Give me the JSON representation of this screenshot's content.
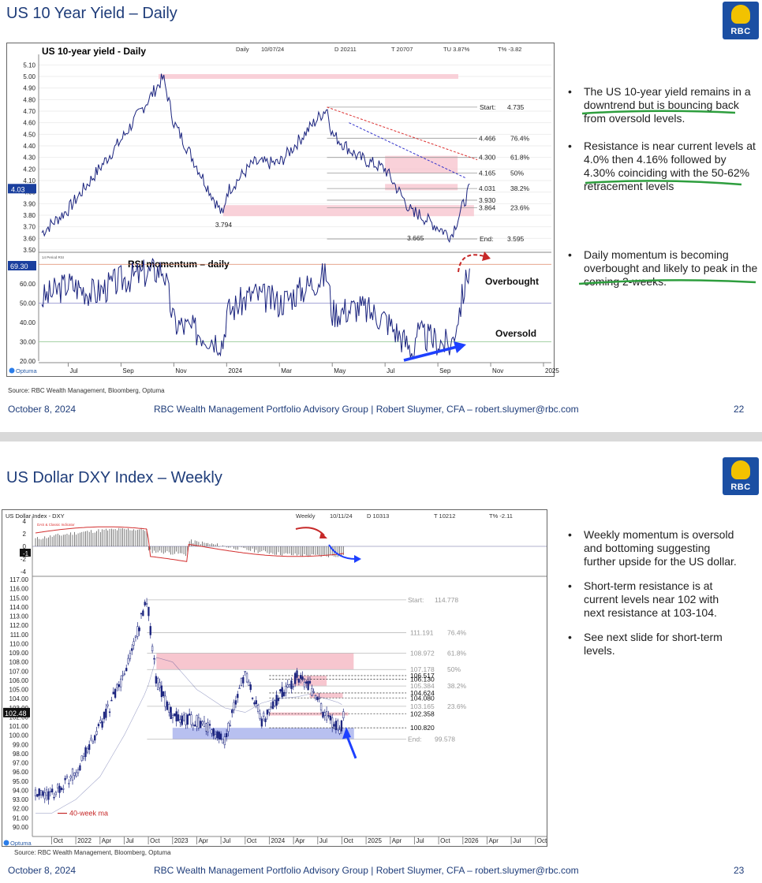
{
  "slide1": {
    "title": "US 10 Year Yield – Daily",
    "logo_text": "RBC",
    "chart_header": {
      "title": "US 10-year yield - Daily",
      "items": [
        "Daily",
        "10/07/24",
        "D 20211",
        "T 20707",
        "TU 3.87%",
        "T% -3.82"
      ]
    },
    "panel_label": "RSI momentum – daily",
    "rsi_small_label": "14 Period RSI",
    "annotations": {
      "overbought": "Overbought",
      "oversold": "Oversold",
      "low1": "3.794",
      "low2": "3.665",
      "price_tag": "4.03",
      "rsi_tag": "69.30"
    },
    "fib_levels": [
      {
        "label": "Start:",
        "value": "4.735",
        "pct": ""
      },
      {
        "label": "",
        "value": "4.466",
        "pct": "76.4%"
      },
      {
        "label": "",
        "value": "4.300",
        "pct": "61.8%"
      },
      {
        "label": "",
        "value": "4.165",
        "pct": "50%"
      },
      {
        "label": "",
        "value": "4.031",
        "pct": "38.2%"
      },
      {
        "label": "",
        "value": "3.930",
        "pct": ""
      },
      {
        "label": "",
        "value": "3.864",
        "pct": "23.6%"
      },
      {
        "label": "End:",
        "value": "3.595",
        "pct": ""
      }
    ],
    "logo_footer": "Optuma",
    "bullets": [
      "The US 10-year yield remains in a downtrend but is bouncing back from oversold levels.",
      "Resistance is near current levels at 4.0% then 4.16% followed by 4.30% coinciding with the 50-62% retracement levels",
      "Daily momentum is becoming overbought and likely to peak in the coming 2-weeks."
    ],
    "source": "Source: RBC Wealth Management, Bloomberg, Optuma",
    "footer": {
      "date": "October 8, 2024",
      "center": "RBC Wealth Management Portfolio Advisory Group | Robert Sluymer, CFA – robert.sluymer@rbc.com",
      "page": "22"
    }
  },
  "slide2": {
    "title": "US Dollar DXY Index – Weekly",
    "logo_text": "RBC",
    "chart_header": {
      "title": "US Dollar Index - DXY",
      "items": [
        "Weekly",
        "10/11/24",
        "D 10313",
        "T 10212",
        "T% -2.11"
      ]
    },
    "macd_label": "DAS & Classic Indicator",
    "ma_label": "40-week ma",
    "price_tag": "102.48",
    "macd_tag": "-1",
    "fib_levels": [
      {
        "label": "Start:",
        "value": "114.778",
        "pct": ""
      },
      {
        "label": "",
        "value": "111.191",
        "pct": "76.4%"
      },
      {
        "label": "",
        "value": "108.972",
        "pct": "61.8%"
      },
      {
        "label": "",
        "value": "107.178",
        "pct": "50%"
      },
      {
        "label": "",
        "value": "106.517",
        "pct": ""
      },
      {
        "label": "",
        "value": "106.130",
        "pct": ""
      },
      {
        "label": "",
        "value": "105.384",
        "pct": "38.2%"
      },
      {
        "label": "",
        "value": "104.624",
        "pct": ""
      },
      {
        "label": "",
        "value": "104.080",
        "pct": ""
      },
      {
        "label": "",
        "value": "103.165",
        "pct": "23.6%"
      },
      {
        "label": "",
        "value": "102.358",
        "pct": ""
      },
      {
        "label": "",
        "value": "100.820",
        "pct": ""
      },
      {
        "label": "End:",
        "value": "99.578",
        "pct": ""
      }
    ],
    "logo_footer": "Optuma",
    "bullets": [
      "Weekly momentum is oversold and bottoming suggesting further upside for the US dollar.",
      "Short-term resistance is at current levels near 102 with next resistance at 103-104.",
      "See next slide for short-term levels."
    ],
    "source": "Source: RBC Wealth Management, Bloomberg, Optuma",
    "footer": {
      "date": "October 8, 2024",
      "center": "RBC Wealth Management Portfolio Advisory Group | Robert Sluymer, CFA – robert.sluymer@rbc.com",
      "page": "23"
    }
  },
  "chart_data": [
    {
      "type": "line",
      "title": "US 10-year yield - Daily",
      "x_ticks": [
        "Jul",
        "Sep",
        "Nov",
        "2024",
        "Mar",
        "May",
        "Jul",
        "Sep",
        "Nov",
        "2025"
      ],
      "ylim": [
        3.5,
        5.15
      ],
      "y_ticks": [
        "5.10",
        "5.00",
        "4.90",
        "4.80",
        "4.70",
        "4.60",
        "4.50",
        "4.40",
        "4.30",
        "4.20",
        "4.10",
        "4.00",
        "3.90",
        "3.80",
        "3.70",
        "3.60",
        "3.50"
      ],
      "series": [
        {
          "x": [
            "2023-06",
            "2023-07",
            "2023-08",
            "2023-09",
            "2023-10-19",
            "2023-11",
            "2023-12-27",
            "2024-01",
            "2024-02",
            "2024-03",
            "2024-04-25",
            "2024-05",
            "2024-06",
            "2024-07",
            "2024-08-05",
            "2024-08",
            "2024-09-16",
            "2024-10-07"
          ],
          "values": [
            3.65,
            3.85,
            4.15,
            4.45,
            4.99,
            4.6,
            3.79,
            4.0,
            4.25,
            4.25,
            4.73,
            4.5,
            4.3,
            4.2,
            3.78,
            3.85,
            3.62,
            4.03
          ]
        }
      ],
      "panel": {
        "name": "RSI momentum – daily",
        "ylim": [
          20,
          75
        ],
        "y_ticks": [
          "60.00",
          "50.00",
          "40.00",
          "30.00",
          "20.00"
        ],
        "levels": [
          70,
          50,
          30
        ],
        "series": [
          {
            "values": [
              52,
              60,
              55,
              62,
              68,
              40,
              30,
              45,
              55,
              50,
              65,
              45,
              48,
              42,
              24,
              35,
              28,
              69.3
            ]
          }
        ]
      }
    },
    {
      "type": "bar",
      "title": "US Dollar Index - DXY",
      "x_ticks": [
        "Oct",
        "2022",
        "Apr",
        "Jul",
        "Oct",
        "2023",
        "Apr",
        "Jul",
        "Oct",
        "2024",
        "Apr",
        "Jul",
        "Oct",
        "2025",
        "Apr",
        "Jul",
        "Oct",
        "2026",
        "Apr",
        "Jul",
        "Oct"
      ],
      "ylim": [
        90,
        117
      ],
      "y_ticks": [
        "117.00",
        "116.00",
        "115.00",
        "114.00",
        "113.00",
        "112.00",
        "111.00",
        "110.00",
        "109.00",
        "108.00",
        "107.00",
        "106.00",
        "105.00",
        "104.00",
        "103.00",
        "102.00",
        "101.00",
        "100.00",
        "99.00",
        "98.00",
        "97.00",
        "96.00",
        "95.00",
        "94.00",
        "93.00",
        "92.00",
        "91.00",
        "90.00"
      ],
      "series": [
        {
          "name": "DXY",
          "x": [
            "2021-10",
            "2022-01",
            "2022-04",
            "2022-07",
            "2022-09-26",
            "2022-11",
            "2023-01",
            "2023-04",
            "2023-07-14",
            "2023-10-02",
            "2023-12",
            "2024-02",
            "2024-04-15",
            "2024-06",
            "2024-08",
            "2024-09-27",
            "2024-10-11"
          ],
          "values": [
            93.5,
            96.0,
            101.0,
            106.5,
            114.78,
            106.0,
            102.0,
            101.5,
            99.58,
            107.0,
            101.5,
            104.0,
            106.5,
            105.5,
            102.0,
            100.8,
            102.48
          ]
        },
        {
          "name": "40-week ma",
          "values": [
            91.5,
            93,
            95.5,
            100,
            105,
            108.5,
            108,
            105,
            103,
            102.5,
            103.5,
            104,
            104.2,
            104.5,
            104,
            103.5,
            103
          ]
        }
      ],
      "panel": {
        "name": "DAS & Classic Indicator",
        "ylim": [
          -4,
          4
        ],
        "y_ticks": [
          "4",
          "2",
          "0",
          "-2",
          "-4"
        ]
      }
    }
  ]
}
